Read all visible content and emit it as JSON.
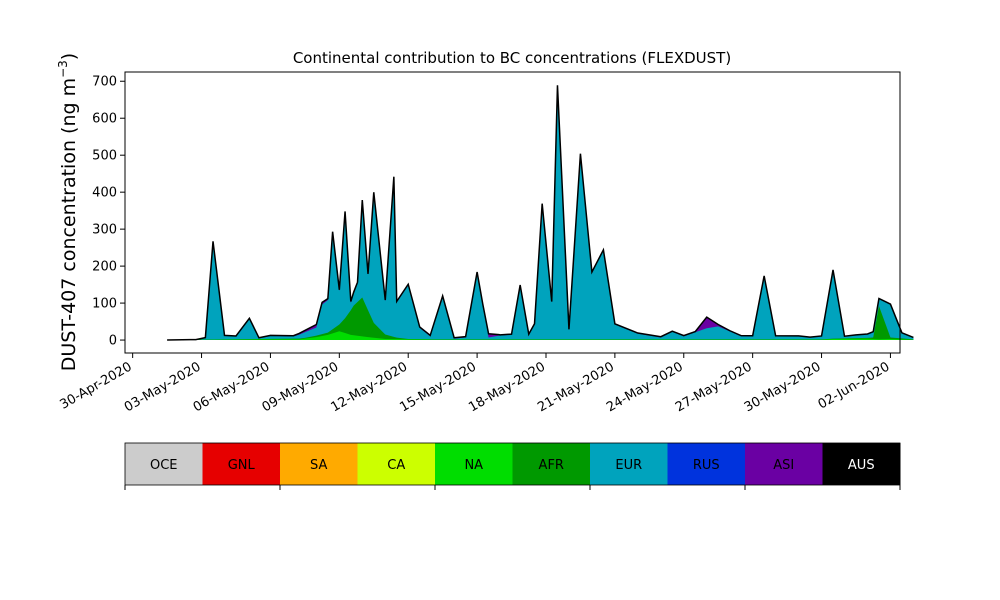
{
  "chart_data": [
    {
      "type": "area",
      "title": "Continental contribution to BC concentrations (FLEXDUST)",
      "xlabel": "",
      "ylabel": "DUST-407 concentration (ng m",
      "ylabel_sup": "−3",
      "ylabel_end": ")",
      "ylim": [
        -35,
        725
      ],
      "yticks": [
        0,
        100,
        200,
        300,
        400,
        500,
        600,
        700
      ],
      "xlim": [
        "2020-04-29T16:00",
        "2020-06-02T10:00"
      ],
      "xtick_labels": [
        "30-Apr-2020",
        "03-May-2020",
        "06-May-2020",
        "09-May-2020",
        "12-May-2020",
        "15-May-2020",
        "18-May-2020",
        "21-May-2020",
        "24-May-2020",
        "27-May-2020",
        "30-May-2020",
        "02-Jun-2020"
      ],
      "xtick_dates": [
        "2020-04-30",
        "2020-05-03",
        "2020-05-06",
        "2020-05-09",
        "2020-05-12",
        "2020-05-15",
        "2020-05-18",
        "2020-05-21",
        "2020-05-24",
        "2020-05-27",
        "2020-05-30",
        "2020-06-02"
      ],
      "grid": false,
      "stacking_order": [
        "NA",
        "AFR",
        "EUR",
        "ASI"
      ],
      "series": [
        {
          "name": "NA",
          "color": "#00dd00",
          "x": [
            "2020-05-01T12:00",
            "2020-05-07T06:00",
            "2020-05-08T00:00",
            "2020-05-08T12:00",
            "2020-05-09T00:00",
            "2020-05-09T12:00",
            "2020-05-10T06:00",
            "2020-05-11T00:00",
            "2020-05-13T00:00",
            "2020-05-30T00:00",
            "2020-05-30T12:00",
            "2020-06-01T00:00",
            "2020-06-01T12:00",
            "2020-06-02T00:00",
            "2020-06-03T00:00"
          ],
          "values": [
            0,
            2,
            8,
            14,
            24,
            14,
            8,
            3,
            1,
            1,
            3,
            4,
            2,
            3,
            1
          ]
        },
        {
          "name": "AFR",
          "color": "#009900",
          "x": [
            "2020-05-01T12:00",
            "2020-05-07T12:00",
            "2020-05-08T12:00",
            "2020-05-09T00:00",
            "2020-05-09T06:00",
            "2020-05-09T15:00",
            "2020-05-10T00:00",
            "2020-05-10T12:00",
            "2020-05-11T00:00",
            "2020-05-11T12:00",
            "2020-05-12T00:00",
            "2020-05-30T12:00",
            "2020-06-01T00:00",
            "2020-06-01T06:00",
            "2020-06-01T12:00",
            "2020-06-02T00:00",
            "2020-06-03T00:00"
          ],
          "values": [
            0,
            2,
            6,
            18,
            40,
            80,
            105,
            40,
            12,
            4,
            1,
            1,
            2,
            4,
            90,
            4,
            1
          ]
        },
        {
          "name": "EUR",
          "color": "#00a3bd",
          "x": [
            "2020-05-01T12:00",
            "2020-05-02T12:00",
            "2020-05-02T18:00",
            "2020-05-03T04:00",
            "2020-05-03T12:00",
            "2020-05-04T00:00",
            "2020-05-04T12:00",
            "2020-05-05T02:00",
            "2020-05-05T12:00",
            "2020-05-06T00:00",
            "2020-05-07T00:00",
            "2020-05-07T12:00",
            "2020-05-08T00:00",
            "2020-05-08T06:00",
            "2020-05-08T12:00",
            "2020-05-08T17:00",
            "2020-05-09T00:00",
            "2020-05-09T06:00",
            "2020-05-09T12:00",
            "2020-05-09T19:00",
            "2020-05-10T00:00",
            "2020-05-10T06:00",
            "2020-05-10T12:00",
            "2020-05-11T00:00",
            "2020-05-11T09:00",
            "2020-05-11T12:00",
            "2020-05-12T00:00",
            "2020-05-12T12:00",
            "2020-05-12T23:00",
            "2020-05-13T12:00",
            "2020-05-14T00:00",
            "2020-05-14T12:00",
            "2020-05-15T00:00",
            "2020-05-15T12:00",
            "2020-05-15T23:00",
            "2020-05-16T12:00",
            "2020-05-16T21:00",
            "2020-05-17T06:00",
            "2020-05-17T12:00",
            "2020-05-17T20:00",
            "2020-05-18T06:00",
            "2020-05-18T12:00",
            "2020-05-19T00:00",
            "2020-05-19T12:00",
            "2020-05-20T00:00",
            "2020-05-20T12:00",
            "2020-05-21T00:00",
            "2020-05-22T00:00",
            "2020-05-23T00:00",
            "2020-05-23T12:00",
            "2020-05-24T00:00",
            "2020-05-25T00:00",
            "2020-05-25T12:00",
            "2020-05-26T12:00",
            "2020-05-27T00:00",
            "2020-05-27T12:00",
            "2020-05-28T00:00",
            "2020-05-29T00:00",
            "2020-05-29T12:00",
            "2020-05-30T00:00",
            "2020-05-30T12:00",
            "2020-05-31T00:00",
            "2020-05-31T12:00",
            "2020-06-01T00:00",
            "2020-06-01T12:00",
            "2020-06-02T00:00",
            "2020-06-02T12:00",
            "2020-06-03T00:00"
          ],
          "values": [
            0,
            0,
            0,
            5,
            265,
            10,
            8,
            55,
            2,
            8,
            6,
            15,
            22,
            80,
            88,
            260,
            90,
            285,
            20,
            50,
            260,
            95,
            350,
            90,
            430,
            95,
            145,
            30,
            8,
            115,
            2,
            5,
            180,
            5,
            10,
            12,
            145,
            12,
            40,
            365,
            100,
            685,
            25,
            500,
            180,
            240,
            40,
            15,
            5,
            20,
            8,
            30,
            35,
            8,
            8,
            170,
            8,
            8,
            5,
            8,
            185,
            5,
            8,
            10,
            20,
            90,
            15,
            5
          ]
        },
        {
          "name": "ASI",
          "color": "#6a00a3",
          "x": [
            "2020-05-01T12:00",
            "2020-05-07T00:00",
            "2020-05-08T00:00",
            "2020-05-08T12:00",
            "2020-05-15T06:00",
            "2020-05-15T12:00",
            "2020-05-16T00:00",
            "2020-05-24T12:00",
            "2020-05-25T00:00",
            "2020-05-25T12:00",
            "2020-05-26T00:00",
            "2020-06-03T00:00"
          ],
          "values": [
            0,
            2,
            8,
            4,
            2,
            10,
            2,
            2,
            30,
            5,
            2,
            0
          ]
        }
      ],
      "total_outline_color": "#000000"
    },
    {
      "type": "colorbar",
      "categories": [
        "OCE",
        "GNL",
        "SA",
        "CA",
        "NA",
        "AFR",
        "EUR",
        "RUS",
        "ASI",
        "AUS"
      ],
      "colors": [
        "#cccccc",
        "#e60000",
        "#ffaa00",
        "#ccff00",
        "#00dd00",
        "#009900",
        "#00a3bd",
        "#0033dd",
        "#6a00a3",
        "#000000"
      ],
      "text_colors": [
        "#000000",
        "#000000",
        "#000000",
        "#000000",
        "#000000",
        "#000000",
        "#000000",
        "#000000",
        "#000000",
        "#ffffff"
      ]
    }
  ]
}
